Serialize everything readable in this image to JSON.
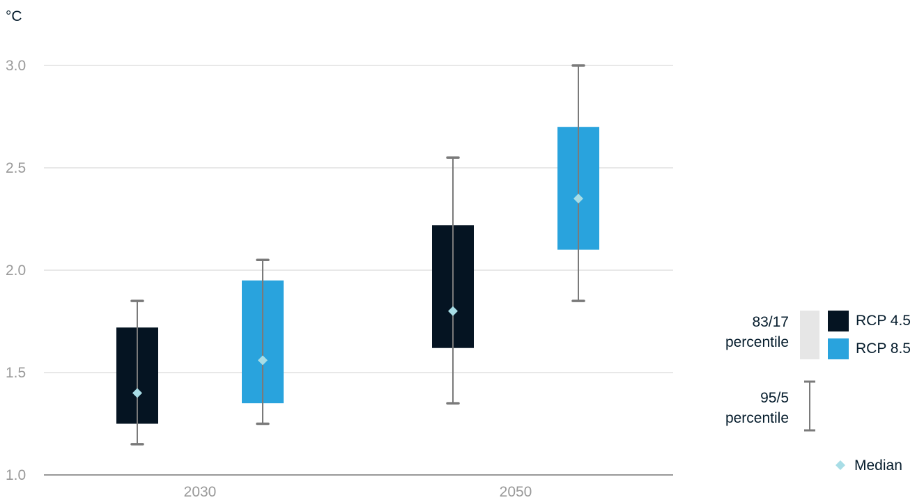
{
  "chart_data": {
    "type": "boxplot",
    "y_unit": "°C",
    "ylim": [
      1.0,
      3.0
    ],
    "yticks": [
      "1.0",
      "1.5",
      "2.0",
      "2.5",
      "3.0"
    ],
    "grid": true,
    "categories": [
      "2030",
      "2050"
    ],
    "series": [
      {
        "name": "RCP 4.5",
        "color": "#051422",
        "boxes": [
          {
            "category": "2030",
            "p95": 1.85,
            "p83": 1.72,
            "median": 1.4,
            "p17": 1.25,
            "p5": 1.15
          },
          {
            "category": "2050",
            "p95": 2.55,
            "p83": 2.22,
            "median": 1.8,
            "p17": 1.62,
            "p5": 1.35
          }
        ]
      },
      {
        "name": "RCP 8.5",
        "color": "#29a3dd",
        "boxes": [
          {
            "category": "2030",
            "p95": 2.05,
            "p83": 1.95,
            "median": 1.56,
            "p17": 1.35,
            "p5": 1.25
          },
          {
            "category": "2050",
            "p95": 3.0,
            "p83": 2.7,
            "median": 2.35,
            "p17": 2.1,
            "p5": 1.85
          }
        ]
      }
    ],
    "legend": {
      "placement": "right",
      "box_label_line1": "83/17",
      "box_label_line2": "percentile",
      "whisker_label_line1": "95/5",
      "whisker_label_line2": "percentile",
      "median_label": "Median"
    },
    "colors": {
      "median": "#a8dde6",
      "whisker": "#7a7a7a",
      "grid": "#d0d0d0",
      "axis": "#777777",
      "tick_text": "#999999",
      "legend_box_bg": "#e6e6e6"
    }
  }
}
